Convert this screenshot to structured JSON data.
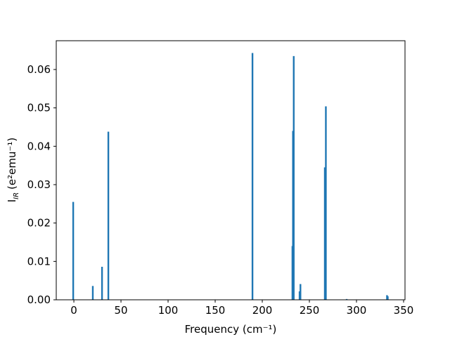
{
  "chart_data": {
    "type": "bar",
    "x_label": "Frequency (cm⁻¹)",
    "y_label": {
      "main": "I",
      "sub": "IR",
      "unit": "(e²emu⁻¹)"
    },
    "x": [
      -0.7,
      20.1,
      29.9,
      36.6,
      189.6,
      232,
      232.6,
      233.4,
      239.6,
      240.5,
      266.4,
      267.5,
      289.6,
      332.4,
      333.2
    ],
    "values": [
      0.0255,
      0.0036,
      0.0086,
      0.0438,
      0.0643,
      0.014,
      0.044,
      0.0635,
      0.0022,
      0.0041,
      0.0345,
      0.0504,
      0.0002,
      0.0012,
      0.0009
    ],
    "color": "#1f77b4",
    "xlim": [
      -18.7,
      351.5
    ],
    "xticks": [
      0,
      50,
      100,
      150,
      200,
      250,
      300,
      350
    ],
    "ylim": [
      0,
      0.0675
    ],
    "yticks": [
      {
        "value": 0,
        "label": "0.00"
      },
      {
        "value": 0.01,
        "label": "0.01"
      },
      {
        "value": 0.02,
        "label": "0.02"
      },
      {
        "value": 0.03,
        "label": "0.03"
      },
      {
        "value": 0.04,
        "label": "0.04"
      },
      {
        "value": 0.05,
        "label": "0.05"
      },
      {
        "value": 0.06,
        "label": "0.06"
      }
    ],
    "grid": false
  }
}
